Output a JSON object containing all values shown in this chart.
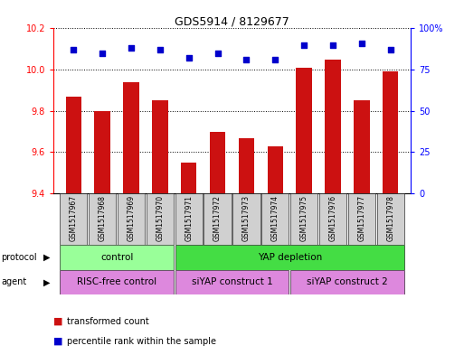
{
  "title": "GDS5914 / 8129677",
  "samples": [
    "GSM1517967",
    "GSM1517968",
    "GSM1517969",
    "GSM1517970",
    "GSM1517971",
    "GSM1517972",
    "GSM1517973",
    "GSM1517974",
    "GSM1517975",
    "GSM1517976",
    "GSM1517977",
    "GSM1517978"
  ],
  "bar_values": [
    9.87,
    9.8,
    9.94,
    9.85,
    9.55,
    9.7,
    9.67,
    9.63,
    10.01,
    10.05,
    9.85,
    9.99
  ],
  "percentile_values": [
    87,
    85,
    88,
    87,
    82,
    85,
    81,
    81,
    90,
    90,
    91,
    87
  ],
  "ylim_left": [
    9.4,
    10.2
  ],
  "ylim_right": [
    0,
    100
  ],
  "bar_color": "#cc1111",
  "scatter_color": "#0000cc",
  "yticks_left": [
    9.4,
    9.6,
    9.8,
    10.0,
    10.2
  ],
  "yticks_right": [
    0,
    25,
    50,
    75,
    100
  ],
  "protocol_groups": [
    {
      "text": "control",
      "start": 0,
      "end": 3,
      "color": "#99ff99"
    },
    {
      "text": "YAP depletion",
      "start": 4,
      "end": 11,
      "color": "#44dd44"
    }
  ],
  "agent_groups": [
    {
      "text": "RISC-free control",
      "start": 0,
      "end": 3,
      "color": "#dd88dd"
    },
    {
      "text": "siYAP construct 1",
      "start": 4,
      "end": 7,
      "color": "#dd88dd"
    },
    {
      "text": "siYAP construct 2",
      "start": 8,
      "end": 11,
      "color": "#dd88dd"
    }
  ],
  "background_color": "#ffffff",
  "label_box_color": "#d0d0d0",
  "grid_color": "#000000",
  "title_fontsize": 9,
  "axis_fontsize": 7,
  "label_fontsize": 5.5,
  "row_fontsize": 7.5,
  "legend_fontsize": 7
}
